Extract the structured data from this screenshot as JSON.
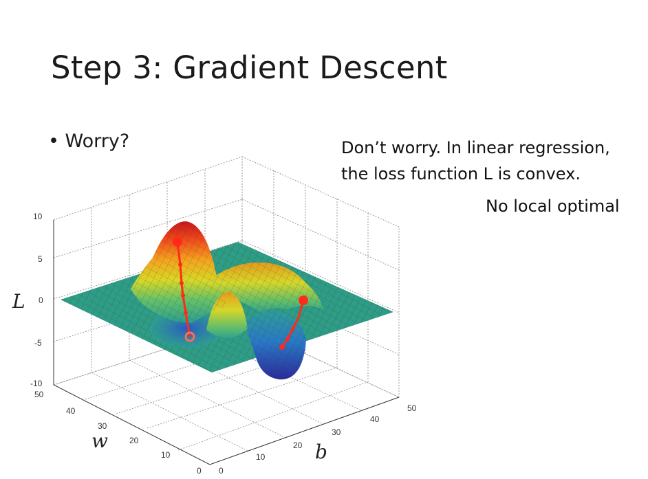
{
  "slide": {
    "title": "Step 3: Gradient Descent",
    "bullet_marker": "•",
    "bullet": "Worry?",
    "note_line1": "Don’t worry. In linear regression,",
    "note_line2": "the loss function L is convex.",
    "note_line3": "No local optimal"
  },
  "figure": {
    "z_axis_label": "L",
    "w_axis_label": "w",
    "b_axis_label": "b",
    "z_ticks": [
      "10",
      "5",
      "0",
      "-5",
      "-10"
    ],
    "w_ticks": [
      "50",
      "40",
      "30",
      "20",
      "10",
      "0"
    ],
    "b_ticks": [
      "0",
      "10",
      "20",
      "30",
      "40",
      "50"
    ],
    "path_color": "#ff2a1a"
  }
}
